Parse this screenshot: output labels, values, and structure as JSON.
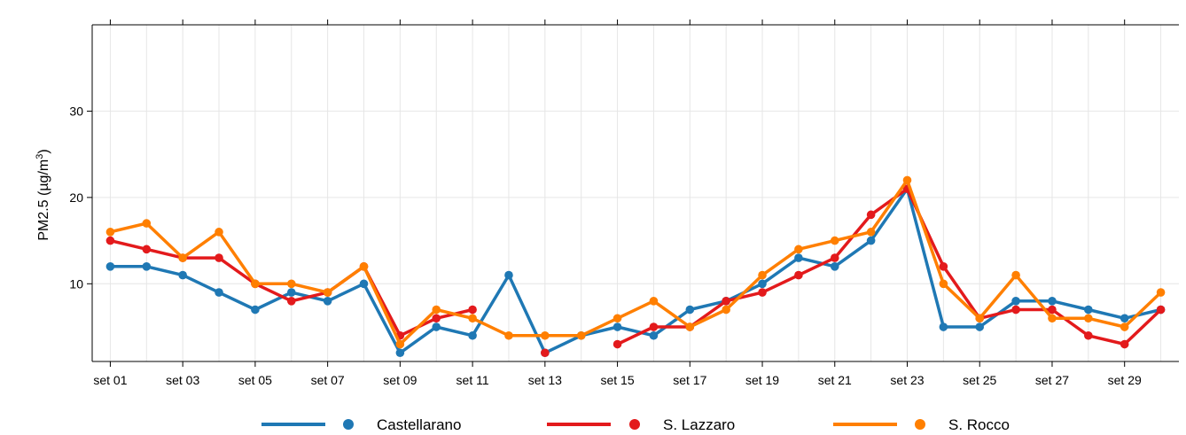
{
  "chart_data": {
    "type": "line",
    "title": "",
    "ylabel_parts": {
      "prefix": "PM2.5 (µg/m",
      "sup": "3",
      "suffix": ")"
    },
    "ylim": [
      1,
      40
    ],
    "yticks": [
      10,
      20,
      30
    ],
    "x": [
      1,
      2,
      3,
      4,
      5,
      6,
      7,
      8,
      9,
      10,
      11,
      12,
      13,
      14,
      15,
      16,
      17,
      18,
      19,
      20,
      21,
      22,
      23,
      24,
      25,
      26,
      27,
      28,
      29,
      30
    ],
    "xlim": [
      0.5,
      30.5
    ],
    "xticks": [
      {
        "x": 1,
        "label": "set 01"
      },
      {
        "x": 3,
        "label": "set 03"
      },
      {
        "x": 5,
        "label": "set 05"
      },
      {
        "x": 7,
        "label": "set 07"
      },
      {
        "x": 9,
        "label": "set 09"
      },
      {
        "x": 11,
        "label": "set 11"
      },
      {
        "x": 13,
        "label": "set 13"
      },
      {
        "x": 15,
        "label": "set 15"
      },
      {
        "x": 17,
        "label": "set 17"
      },
      {
        "x": 19,
        "label": "set 19"
      },
      {
        "x": 21,
        "label": "set 21"
      },
      {
        "x": 23,
        "label": "set 23"
      },
      {
        "x": 25,
        "label": "set 25"
      },
      {
        "x": 27,
        "label": "set 27"
      },
      {
        "x": 29,
        "label": "set 29"
      }
    ],
    "grid": true,
    "legend_position": "bottom",
    "series": [
      {
        "name": "Castellarano",
        "color": "#1f78b4",
        "values": [
          12,
          12,
          11,
          9,
          7,
          9,
          8,
          10,
          2,
          5,
          4,
          11,
          2,
          4,
          5,
          4,
          7,
          8,
          10,
          13,
          12,
          15,
          21,
          5,
          5,
          8,
          8,
          7,
          6,
          7
        ]
      },
      {
        "name": "S. Lazzaro",
        "color": "#e31a1c",
        "values": [
          15,
          14,
          13,
          13,
          10,
          8,
          9,
          12,
          4,
          6,
          7,
          null,
          2,
          null,
          3,
          5,
          5,
          8,
          9,
          11,
          13,
          18,
          21,
          12,
          6,
          7,
          7,
          4,
          3,
          7
        ]
      },
      {
        "name": "S. Rocco",
        "color": "#ff7f00",
        "values": [
          16,
          17,
          13,
          16,
          10,
          10,
          9,
          12,
          3,
          7,
          6,
          4,
          4,
          4,
          6,
          8,
          5,
          7,
          11,
          14,
          15,
          16,
          22,
          10,
          6,
          11,
          6,
          6,
          5,
          9
        ]
      }
    ]
  }
}
